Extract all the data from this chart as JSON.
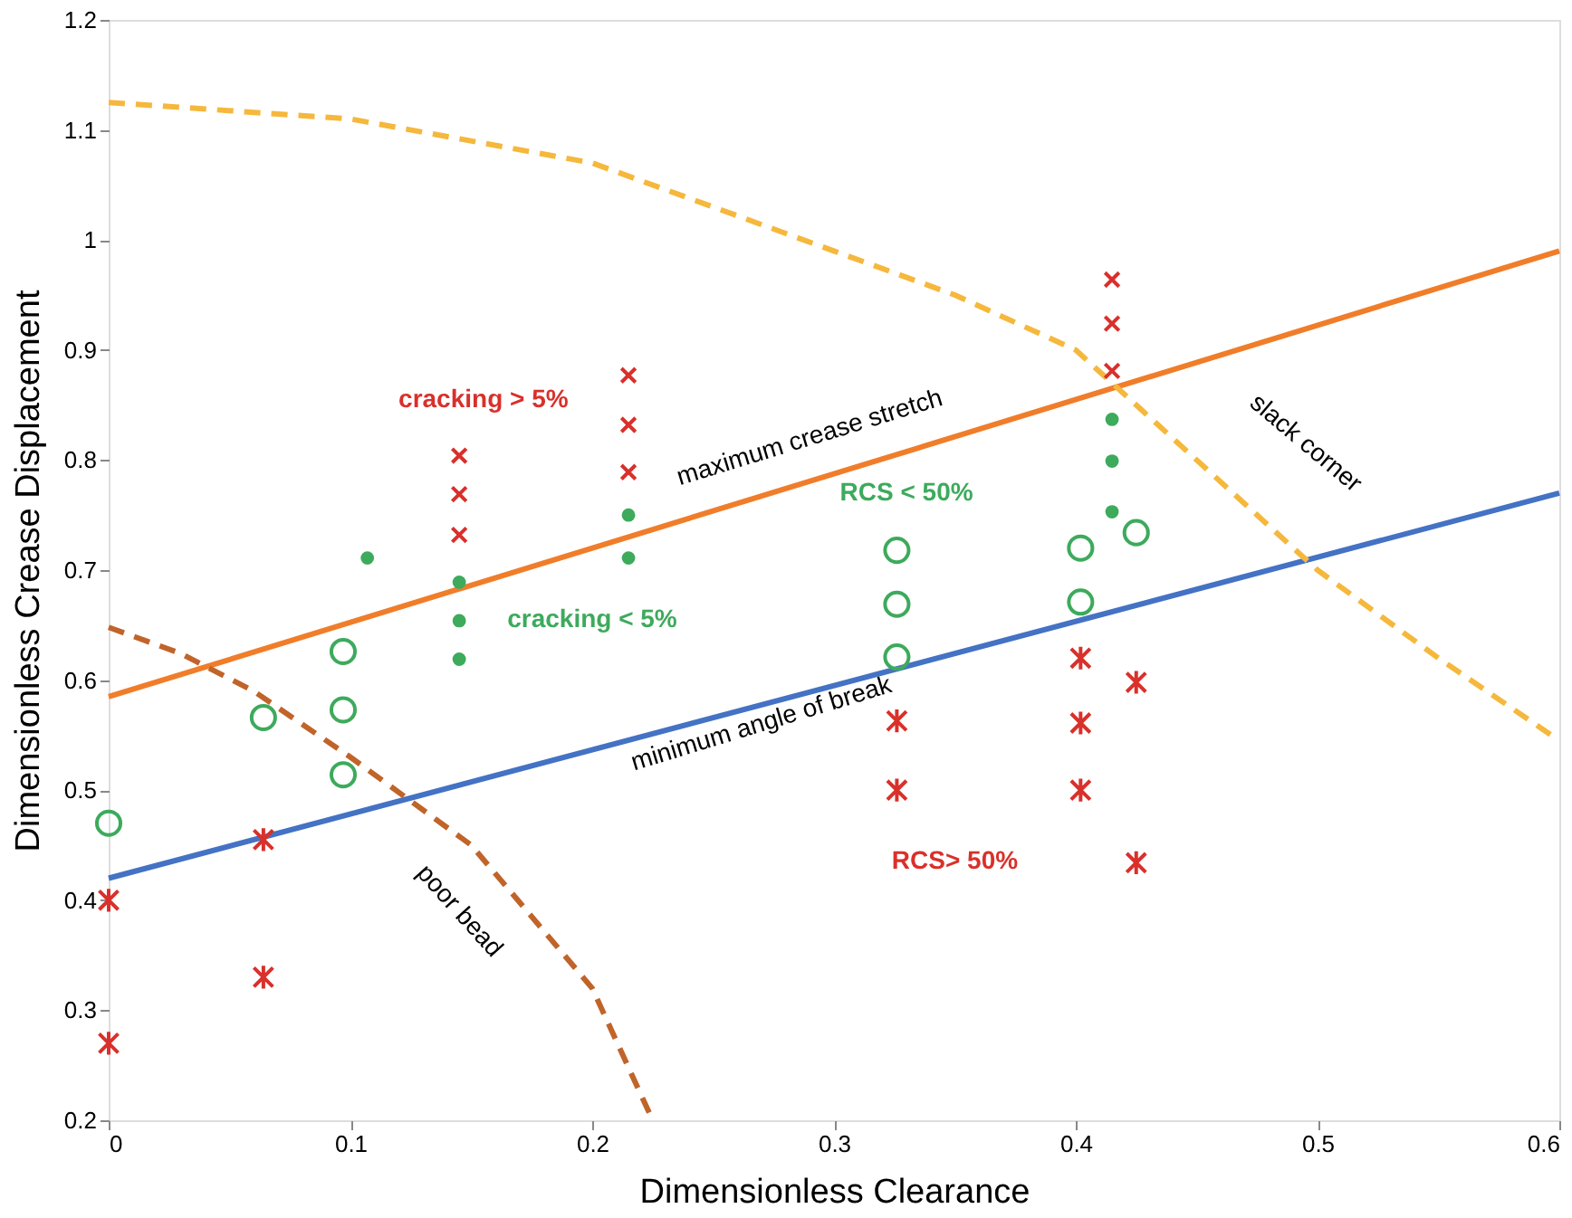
{
  "chart_data": {
    "type": "scatter",
    "xlabel": "Dimensionless Clearance",
    "ylabel": "Dimensionless Crease Displacement",
    "xlim": [
      0,
      0.6
    ],
    "xticks": [
      0,
      0.1,
      0.2,
      0.3,
      0.4,
      0.5,
      0.6
    ],
    "ylim": [
      0.2,
      1.2
    ],
    "yticks": [
      0.2,
      0.3,
      0.4,
      0.5,
      0.6,
      0.7,
      0.8,
      0.9,
      1,
      1.1,
      1.2
    ],
    "grid": false,
    "series": [
      {
        "type": "line",
        "color": "#f07d2a",
        "line_style": "solid",
        "x": [
          0,
          0.6
        ],
        "values": [
          0.585,
          0.99
        ]
      },
      {
        "type": "line",
        "color": "#4472c4",
        "line_style": "solid",
        "x": [
          0,
          0.6
        ],
        "values": [
          0.42,
          0.77
        ]
      },
      {
        "type": "line",
        "color": "#f5b83d",
        "line_style": "dashed",
        "x": [
          0,
          0.1,
          0.2,
          0.25,
          0.3,
          0.35,
          0.4,
          0.45,
          0.5,
          0.55,
          0.6
        ],
        "values": [
          1.125,
          1.11,
          1.07,
          1.03,
          0.99,
          0.95,
          0.9,
          0.8,
          0.7,
          0.62,
          0.545
        ]
      },
      {
        "type": "line",
        "color": "#c0642a",
        "line_style": "dashed",
        "x": [
          0,
          0.03,
          0.06,
          0.1,
          0.125,
          0.15,
          0.2,
          0.225
        ],
        "values": [
          0.648,
          0.624,
          0.59,
          0.53,
          0.49,
          0.45,
          0.32,
          0.2
        ]
      },
      {
        "marker": "cross",
        "color": "#d9302b",
        "x": [
          0,
          0,
          0.064,
          0.064,
          0.326,
          0.326,
          0.402,
          0.402,
          0.402,
          0.425,
          0.425
        ],
        "values": [
          0.4,
          0.27,
          0.455,
          0.33,
          0.563,
          0.5,
          0.62,
          0.561,
          0.5,
          0.598,
          0.434
        ]
      },
      {
        "marker": "cross",
        "color": "#d9302b",
        "x": [
          0.145,
          0.145,
          0.145,
          0.215,
          0.215,
          0.215,
          0.415,
          0.415,
          0.415
        ],
        "values": [
          0.804,
          0.769,
          0.732,
          0.877,
          0.832,
          0.789,
          0.964,
          0.924,
          0.881
        ]
      },
      {
        "marker": "circle",
        "color": "#3daa5c",
        "x": [
          0.107,
          0.145,
          0.145,
          0.145,
          0.215,
          0.215,
          0.415,
          0.415,
          0.415
        ],
        "values": [
          0.711,
          0.689,
          0.654,
          0.619,
          0.75,
          0.711,
          0.837,
          0.799,
          0.753
        ]
      },
      {
        "marker": "circle",
        "color": "#3daa5c",
        "x": [
          0,
          0.064,
          0.097,
          0.097,
          0.097,
          0.326,
          0.326,
          0.326,
          0.402,
          0.402,
          0.425
        ],
        "values": [
          0.47,
          0.566,
          0.626,
          0.573,
          0.514,
          0.718,
          0.669,
          0.621,
          0.72,
          0.671,
          0.734
        ]
      }
    ],
    "annotations": [
      "cracking > 5%",
      "cracking < 5%",
      "RCS < 50%",
      "RCS> 50%",
      "maximum  crease stretch",
      "minimum  angle of break",
      "poor bead",
      "slack corner"
    ]
  }
}
